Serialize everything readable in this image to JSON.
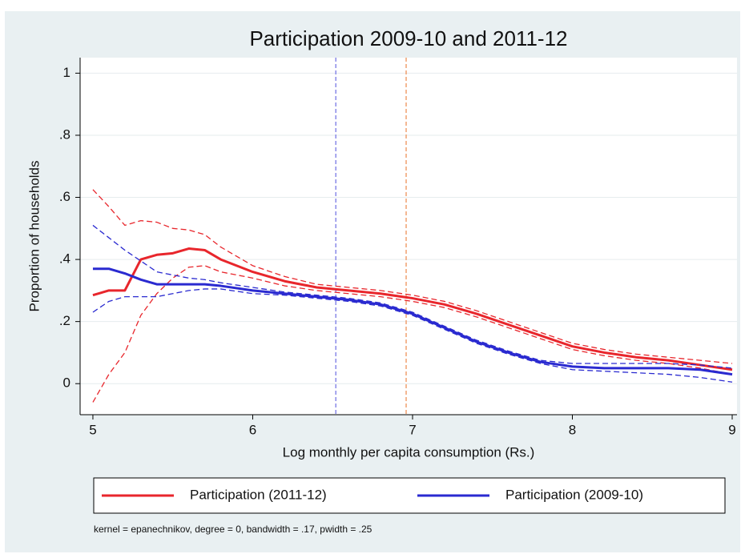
{
  "chart_data": {
    "type": "line",
    "title": "Participation 2009-10 and 2011-12",
    "x_label": "Log monthly per capita consumption (Rs.)",
    "y_label": "Proportion of households",
    "note": "kernel = epanechnikov, degree = 0, bandwidth = .17, pwidth = .25",
    "x": [
      5,
      5.1,
      5.2,
      5.3,
      5.4,
      5.5,
      5.6,
      5.7,
      5.8,
      6,
      6.2,
      6.4,
      6.6,
      6.8,
      7,
      7.2,
      7.4,
      7.6,
      7.8,
      8,
      8.2,
      8.4,
      8.6,
      8.8,
      9
    ],
    "series": [
      {
        "name": "Participation (2011-12)",
        "color": "#e8262c",
        "values": [
          0.285,
          0.3,
          0.3,
          0.4,
          0.415,
          0.42,
          0.435,
          0.43,
          0.4,
          0.36,
          0.33,
          0.31,
          0.3,
          0.29,
          0.275,
          0.255,
          0.225,
          0.19,
          0.155,
          0.12,
          0.1,
          0.085,
          0.075,
          0.06,
          0.045
        ]
      },
      {
        "color": "#e8262c",
        "dashed": true,
        "values": [
          0.625,
          0.57,
          0.51,
          0.525,
          0.52,
          0.5,
          0.495,
          0.48,
          0.44,
          0.38,
          0.345,
          0.32,
          0.31,
          0.3,
          0.285,
          0.265,
          0.235,
          0.2,
          0.165,
          0.13,
          0.11,
          0.095,
          0.085,
          0.075,
          0.065
        ]
      },
      {
        "color": "#e8262c",
        "dashed": true,
        "values": [
          -0.06,
          0.03,
          0.1,
          0.22,
          0.29,
          0.34,
          0.375,
          0.38,
          0.36,
          0.34,
          0.315,
          0.3,
          0.29,
          0.28,
          0.265,
          0.245,
          0.215,
          0.18,
          0.145,
          0.11,
          0.09,
          0.075,
          0.065,
          0.05,
          0.03
        ]
      },
      {
        "name": "Participation (2009-10)",
        "color": "#2a2ad0",
        "values": [
          0.37,
          0.37,
          0.355,
          0.335,
          0.32,
          0.32,
          0.32,
          0.32,
          0.315,
          0.3,
          0.29,
          0.28,
          0.27,
          0.255,
          0.225,
          0.18,
          0.135,
          0.1,
          0.07,
          0.055,
          0.05,
          0.05,
          0.05,
          0.045,
          0.03
        ]
      },
      {
        "color": "#2a2ad0",
        "dashed": true,
        "values": [
          0.51,
          0.47,
          0.43,
          0.395,
          0.36,
          0.35,
          0.34,
          0.335,
          0.325,
          0.31,
          0.295,
          0.285,
          0.275,
          0.26,
          0.23,
          0.185,
          0.14,
          0.105,
          0.075,
          0.065,
          0.065,
          0.065,
          0.065,
          0.06,
          0.05
        ]
      },
      {
        "color": "#2a2ad0",
        "dashed": true,
        "values": [
          0.23,
          0.265,
          0.28,
          0.28,
          0.28,
          0.29,
          0.3,
          0.305,
          0.305,
          0.29,
          0.285,
          0.275,
          0.265,
          0.25,
          0.22,
          0.175,
          0.13,
          0.095,
          0.065,
          0.045,
          0.04,
          0.035,
          0.03,
          0.02,
          0.005
        ]
      }
    ],
    "reference_lines": [
      {
        "value": 6.52,
        "color": "#8a8ae8"
      },
      {
        "value": 6.96,
        "color": "#f0a070"
      }
    ],
    "xlim": [
      4.92,
      9.03
    ],
    "ylim": [
      -0.1,
      1.05
    ],
    "xticks": [
      5,
      6,
      7,
      8,
      9
    ],
    "yticks": [
      0,
      {
        "value": 0.2,
        "label": ".2"
      },
      {
        "value": 0.4,
        "label": ".4"
      },
      {
        "value": 0.6,
        "label": ".6"
      },
      {
        "value": 0.8,
        "label": ".8"
      },
      1
    ],
    "grid": true,
    "legend": "bottom"
  }
}
